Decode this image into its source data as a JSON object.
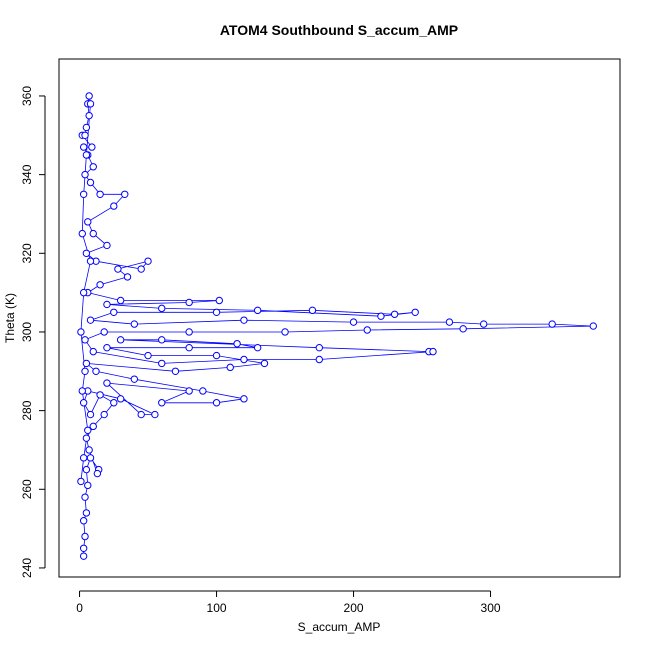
{
  "chart_data": {
    "type": "line",
    "title": "ATOM4 Southbound S_accum_AMP",
    "x_label": "S_accum_AMP",
    "y_label": "Theta (K)",
    "color": "#0000ff",
    "x": [
      3,
      3,
      4,
      3,
      5,
      4,
      6,
      5,
      8,
      14,
      13,
      7,
      5,
      10,
      18,
      25,
      15,
      8,
      3,
      6,
      30,
      55,
      45,
      20,
      80,
      60,
      100,
      120,
      90,
      40,
      12,
      5,
      70,
      110,
      135,
      100,
      50,
      20,
      80,
      130,
      115,
      60,
      30,
      175,
      255,
      258,
      175,
      120,
      60,
      10,
      4,
      18,
      80,
      150,
      210,
      280,
      375,
      345,
      295,
      270,
      200,
      120,
      40,
      8,
      25,
      100,
      170,
      230,
      245,
      220,
      130,
      60,
      20,
      80,
      102,
      30,
      6,
      15,
      35,
      28,
      50,
      45,
      12,
      5,
      20,
      10,
      6,
      25,
      33,
      15,
      8,
      4,
      10,
      6,
      3,
      9,
      2,
      4,
      5,
      7,
      6,
      7,
      8,
      5,
      3,
      2,
      8,
      3,
      1,
      4,
      2,
      6,
      3,
      1
    ],
    "values": [
      243,
      245,
      248,
      252,
      254,
      258,
      261,
      265,
      268,
      265,
      264,
      270,
      273,
      276,
      279,
      282,
      284,
      279,
      282,
      285,
      283,
      279,
      279,
      287,
      285,
      282,
      282,
      283,
      285,
      288,
      290,
      292,
      290,
      291,
      292,
      294,
      294,
      296,
      296,
      296,
      297,
      298,
      298,
      296,
      295,
      295,
      293,
      293,
      292,
      295,
      298,
      300,
      300,
      300,
      300.5,
      300.8,
      301.5,
      302,
      302,
      302.5,
      302.5,
      303,
      302,
      303,
      305,
      305,
      305.5,
      304.5,
      305,
      304,
      305.5,
      306,
      307,
      307.5,
      308,
      308,
      310,
      312,
      314,
      316,
      318,
      316,
      318,
      320,
      322,
      325,
      328,
      332,
      335,
      335,
      338,
      340,
      342,
      345,
      347,
      347,
      350,
      350,
      352,
      355,
      358,
      360,
      358,
      345,
      335,
      325,
      318,
      310,
      300,
      290,
      285,
      275,
      268,
      262
    ],
    "xlim": [
      -15,
      394.5
    ],
    "ylim": [
      237.7,
      369.4
    ],
    "xticks": [
      0,
      100,
      200,
      300
    ],
    "yticks": [
      240,
      260,
      280,
      300,
      320,
      340,
      360
    ]
  }
}
